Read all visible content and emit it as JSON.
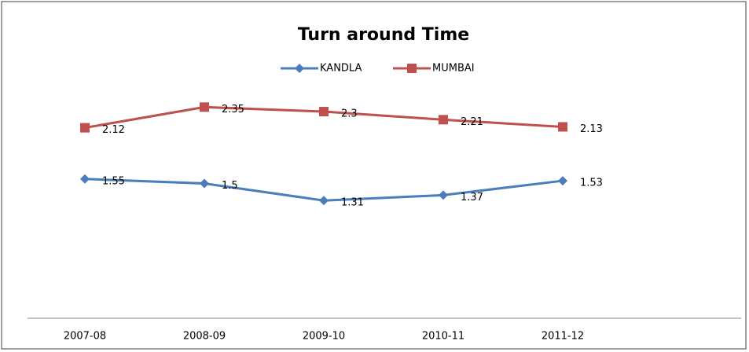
{
  "chart_data": {
    "type": "line",
    "title": "Turn around Time",
    "categories": [
      "2007-08",
      "2008-09",
      "2009-10",
      "2010-11",
      "2011-12"
    ],
    "series": [
      {
        "name": "KANDLA",
        "color": "#4a7ebb",
        "marker": "diamond",
        "values": [
          1.55,
          1.5,
          1.31,
          1.37,
          1.53
        ]
      },
      {
        "name": "MUMBAI",
        "color": "#c0504d",
        "marker": "square",
        "values": [
          2.12,
          2.35,
          2.3,
          2.21,
          2.13
        ]
      }
    ],
    "ylim": [
      0,
      3
    ],
    "legend": "top"
  }
}
